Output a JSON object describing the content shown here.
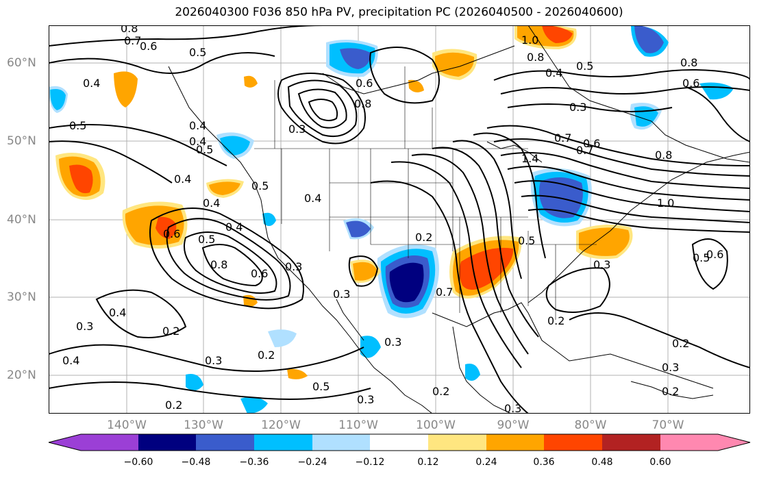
{
  "title": "2026040300 F036 850 hPa PV, precipitation PC (2026040500 - 2026040600)",
  "lat_labels": [
    "60°N",
    "50°N",
    "40°N",
    "30°N",
    "20°N"
  ],
  "lon_labels": [
    "140°W",
    "130°W",
    "120°W",
    "110°W",
    "100°W",
    "90°W",
    "80°W",
    "70°W"
  ],
  "colorbar": {
    "ticks": [
      "−0.60",
      "−0.48",
      "−0.36",
      "−0.24",
      "−0.12",
      "0.12",
      "0.24",
      "0.36",
      "0.48",
      "0.60"
    ],
    "colors": [
      "#9b3fd6",
      "#00007f",
      "#3a5ccc",
      "#00bfff",
      "#b0e0ff",
      "#ffffff",
      "#ffe680",
      "#ffa500",
      "#ff4500",
      "#b22222",
      "#ff88b0"
    ]
  },
  "contour_labels": [
    "0.8",
    "0.7",
    "0.6",
    "0.5",
    "0.4",
    "0.5",
    "0.4",
    "0.3",
    "0.6",
    "0.8",
    "1.0",
    "0.8",
    "0.4",
    "0.5",
    "0.8",
    "0.6",
    "0.3",
    "0.7",
    "0.6",
    "0.8",
    "1.4",
    "1.0",
    "0.4",
    "0.5",
    "0.4",
    "0.4",
    "0.5",
    "0.6",
    "0.5",
    "0.4",
    "0.8",
    "0.6",
    "0.3",
    "0.2",
    "0.5",
    "0.7",
    "0.3",
    "0.4",
    "0.3",
    "0.2",
    "0.3",
    "0.2",
    "0.3",
    "0.4",
    "0.5",
    "0.3",
    "0.2",
    "0.3",
    "0.2",
    "0.2",
    "0.3",
    "0.2",
    "0.5",
    "0.6",
    "0.7",
    "0.3",
    "0.4",
    "0.2"
  ]
}
